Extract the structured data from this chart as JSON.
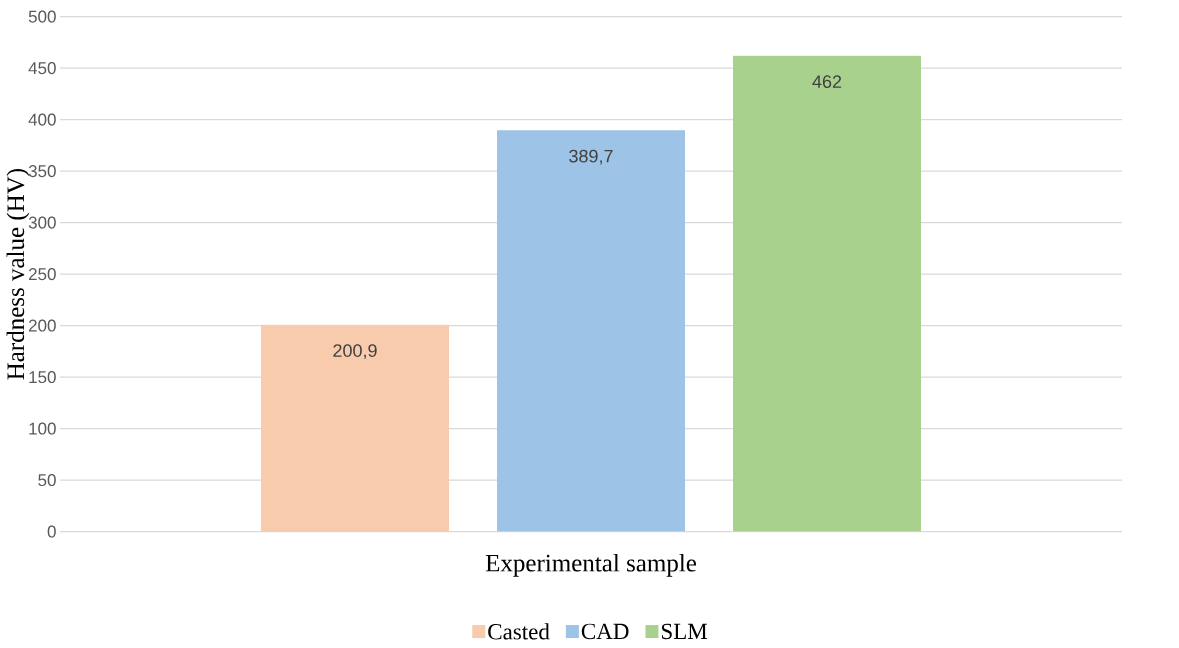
{
  "chart_data": {
    "type": "bar",
    "categories": [
      null
    ],
    "series": [
      {
        "name": "Casted",
        "color": "#f8cbad",
        "values": [
          200.9
        ],
        "value_labels": [
          "200,9"
        ]
      },
      {
        "name": "CAD",
        "color": "#9dc3e6",
        "values": [
          389.7
        ],
        "value_labels": [
          "389,7"
        ]
      },
      {
        "name": "SLM",
        "color": "#a9d18e",
        "values": [
          462
        ],
        "value_labels": [
          "462"
        ]
      }
    ],
    "xlabel": "Experimental sample",
    "ylabel": "Hardness value (HV)",
    "ylim": [
      0,
      500
    ],
    "yticks": [
      0,
      50,
      100,
      150,
      200,
      250,
      300,
      350,
      400,
      450,
      500
    ],
    "grid": "y",
    "legend": "bottom"
  }
}
